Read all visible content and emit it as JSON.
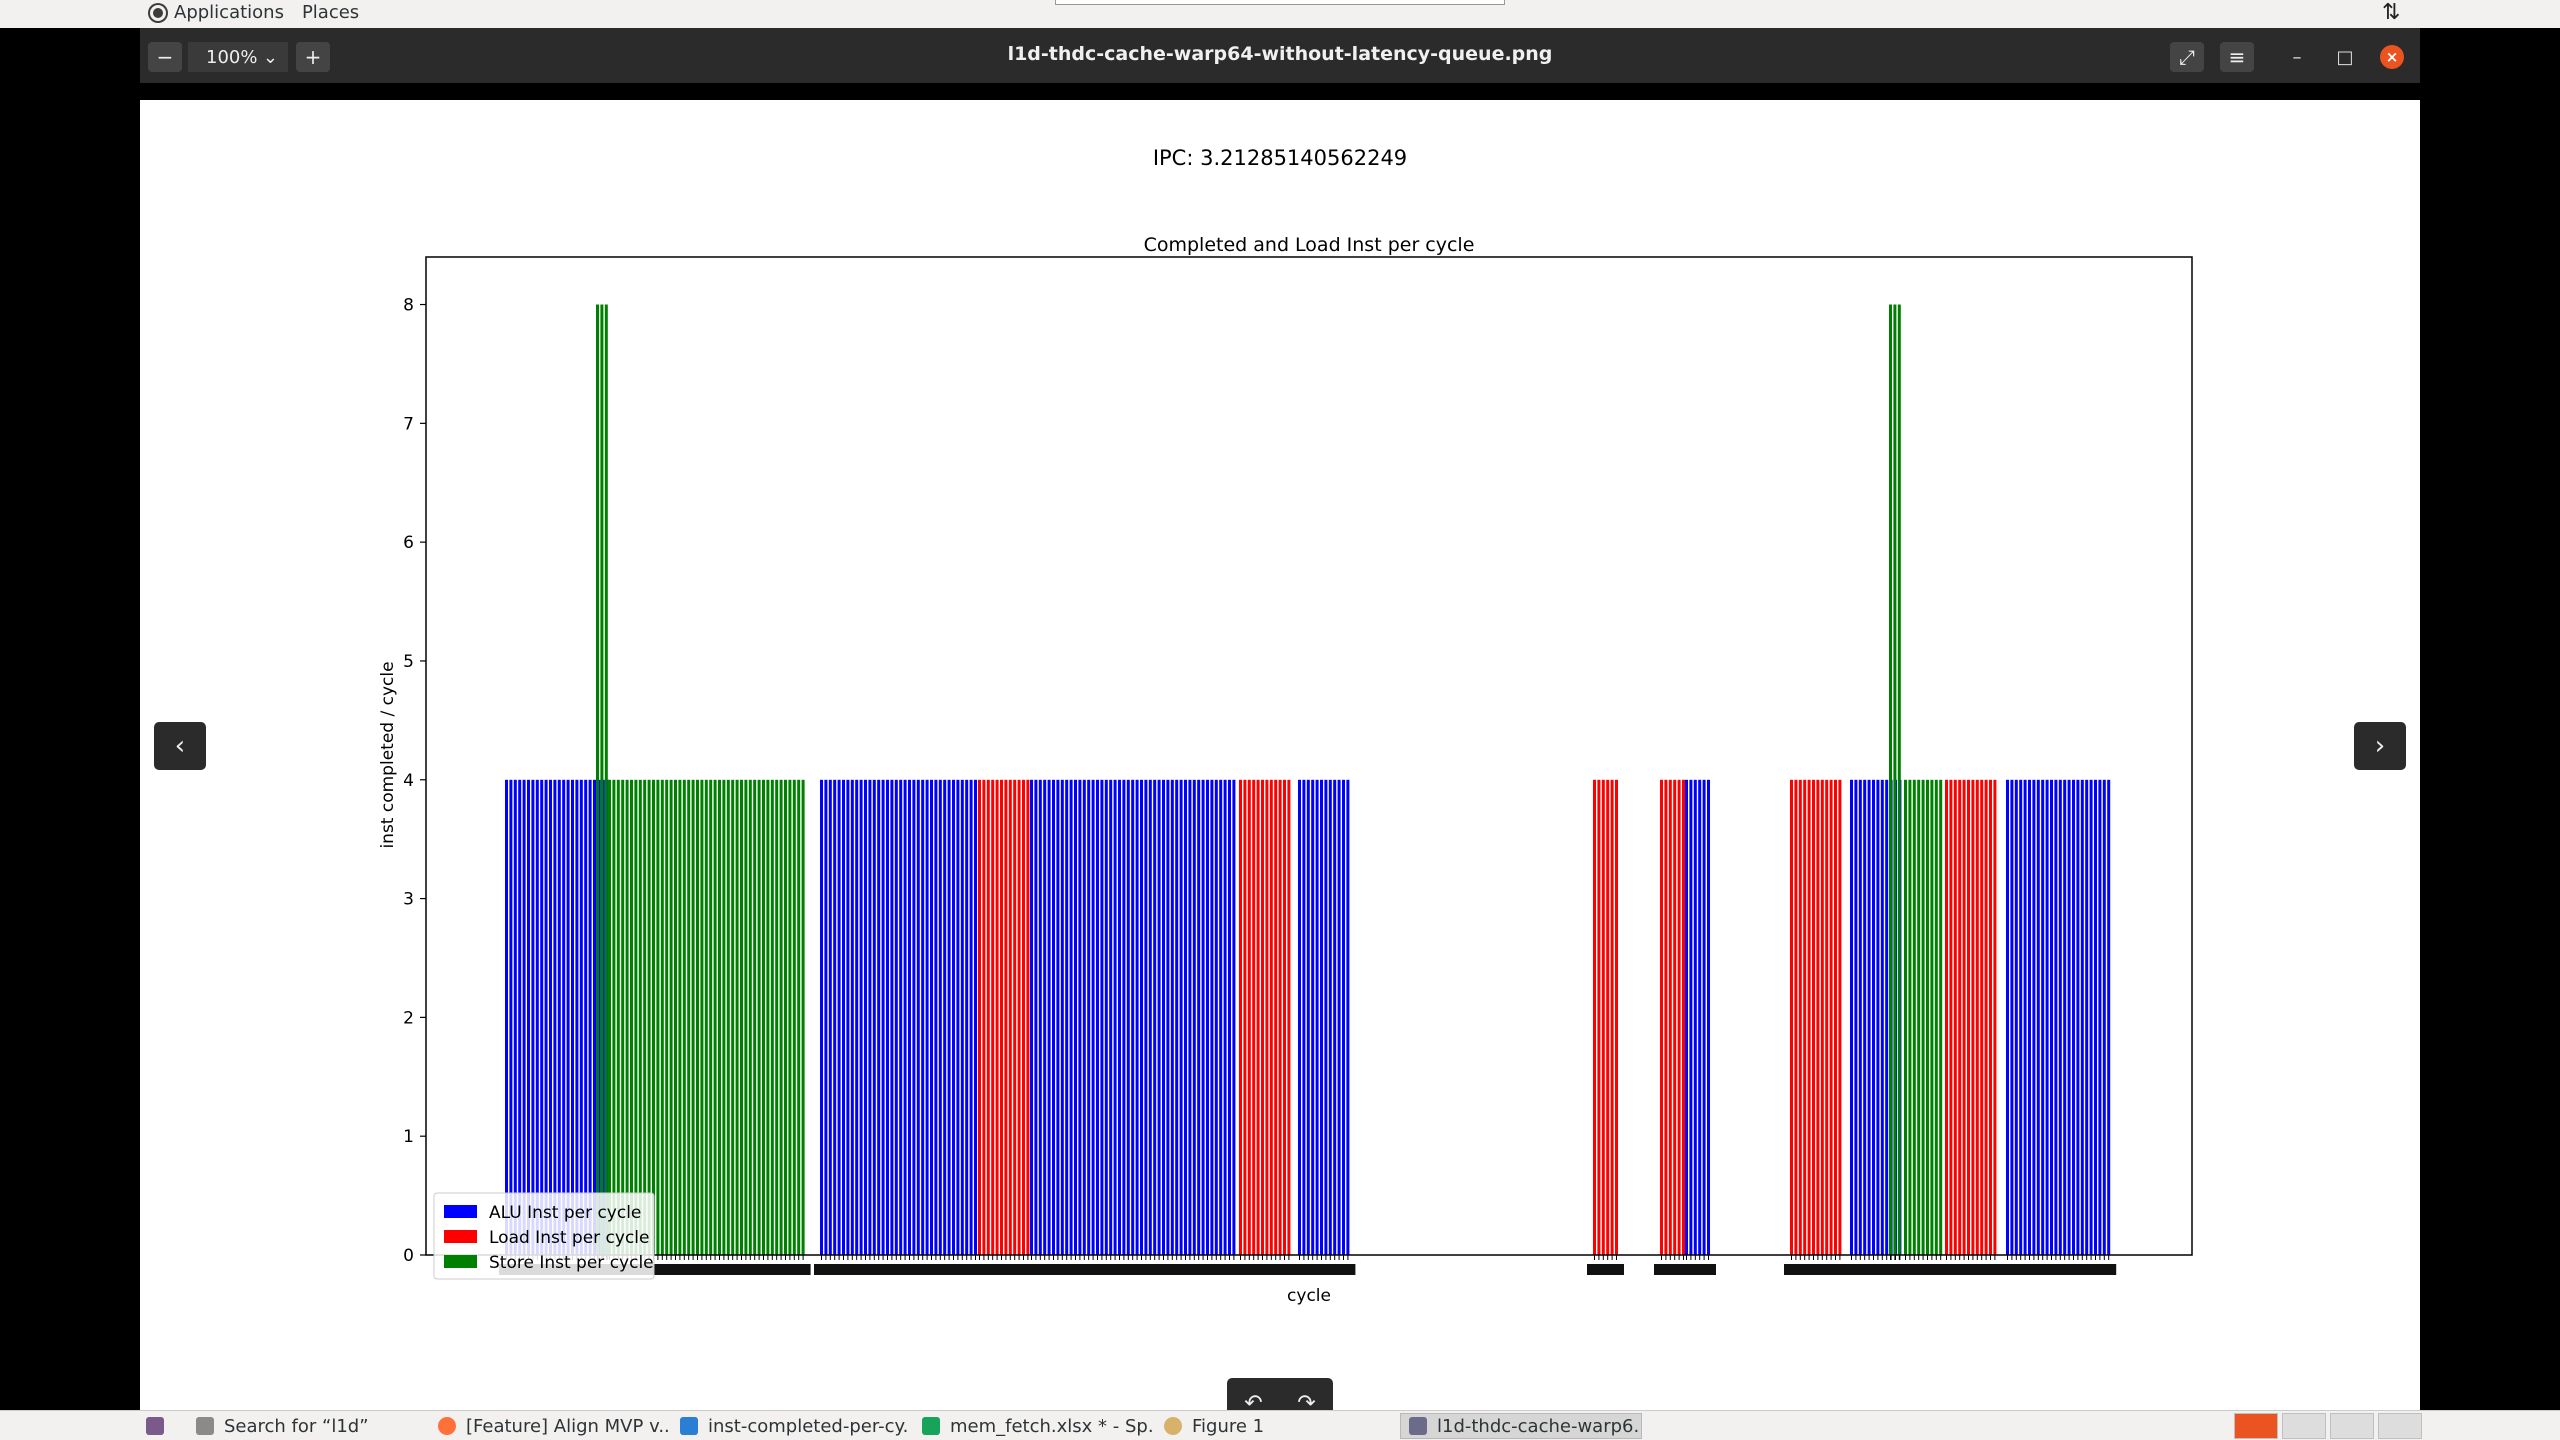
{
  "top_panel": {
    "applications_label": "Applications",
    "places_label": "Places"
  },
  "window": {
    "title": "l1d-thdc-cache-warp64-without-latency-queue.png",
    "zoom_level": "100%"
  },
  "ipc_text": "IPC: 3.21285140562249",
  "chart_data": {
    "type": "bar",
    "title": "Completed and Load Inst per cycle",
    "xlabel": "cycle",
    "ylabel": "inst completed / cycle",
    "ylim": [
      0,
      8.4
    ],
    "yticks": [
      "0",
      "1",
      "2",
      "3",
      "4",
      "5",
      "6",
      "7",
      "8"
    ],
    "legend_position": "lower-left",
    "series": [
      {
        "name": "ALU Inst per cycle",
        "color": "#0000ff",
        "groups": [
          {
            "count": 24,
            "value": 4
          },
          {
            "count": 36,
            "value": 4
          },
          {
            "count": 47,
            "value": 4
          },
          {
            "count": 12,
            "value": 4
          },
          {
            "count": 6,
            "value": 4
          },
          {
            "count": 12,
            "value": 4
          },
          {
            "count": 24,
            "value": 4
          }
        ]
      },
      {
        "name": "Load Inst per cycle",
        "color": "#ff0000",
        "groups": [
          {
            "count": 12,
            "value": 4
          },
          {
            "count": 12,
            "value": 4
          },
          {
            "count": 6,
            "value": 4
          },
          {
            "count": 6,
            "value": 4
          },
          {
            "count": 12,
            "value": 4
          },
          {
            "count": 12,
            "value": 4
          }
        ]
      },
      {
        "name": "Store Inst per cycle",
        "color": "#008000",
        "groups": [
          {
            "count": 3,
            "value": 8
          },
          {
            "count": 45,
            "value": 4
          },
          {
            "count": 3,
            "value": 8
          },
          {
            "count": 9,
            "value": 4
          }
        ]
      }
    ]
  },
  "nav": {
    "prev_icon": "chevron-left-icon",
    "next_icon": "chevron-right-icon"
  },
  "taskbar": {
    "items": [
      {
        "label": "Search for “l1d”",
        "icon": "file-search-icon"
      },
      {
        "label": "[Feature] Align MVP v...",
        "icon": "firefox-icon"
      },
      {
        "label": "inst-completed-per-cy...",
        "icon": "vscode-icon"
      },
      {
        "label": "mem_fetch.xlsx * - Sp...",
        "icon": "spreadsheet-icon"
      },
      {
        "label": "Figure 1",
        "icon": "figure-icon"
      },
      {
        "label": "l1d-thdc-cache-warp6...",
        "icon": "image-viewer-icon"
      }
    ]
  }
}
